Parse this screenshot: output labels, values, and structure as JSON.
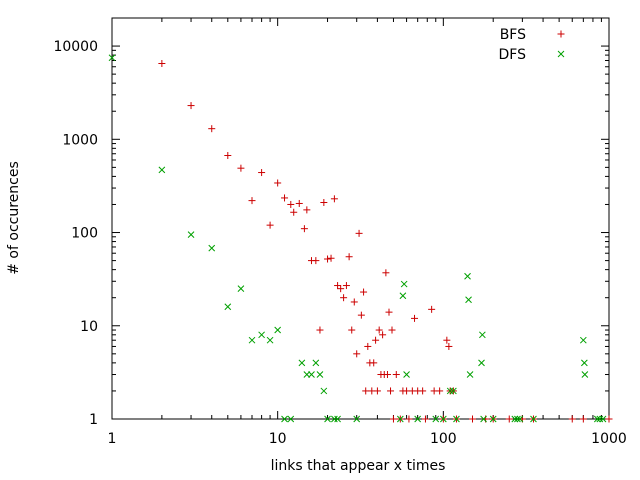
{
  "chart_data": {
    "type": "scatter",
    "title": "",
    "xlabel": "links that appear x times",
    "ylabel": "# of occurences",
    "xscale": "log",
    "yscale": "log",
    "xlim": [
      1,
      1000
    ],
    "ylim": [
      1,
      20000
    ],
    "xticks": [
      {
        "value": 1,
        "label": "1"
      },
      {
        "value": 10,
        "label": "10"
      },
      {
        "value": 100,
        "label": "100"
      },
      {
        "value": 1000,
        "label": "1000"
      }
    ],
    "yticks": [
      {
        "value": 1,
        "label": "1"
      },
      {
        "value": 10,
        "label": "10"
      },
      {
        "value": 100,
        "label": "100"
      },
      {
        "value": 1000,
        "label": "1000"
      },
      {
        "value": 10000,
        "label": "10000"
      }
    ],
    "grid": false,
    "legend_position": "top-right",
    "series": [
      {
        "name": "BFS",
        "marker": "plus",
        "color": "#cc0000",
        "points": [
          [
            2,
            6500
          ],
          [
            3,
            2300
          ],
          [
            4,
            1300
          ],
          [
            5,
            670
          ],
          [
            6,
            490
          ],
          [
            7,
            220
          ],
          [
            8,
            440
          ],
          [
            9,
            120
          ],
          [
            10,
            340
          ],
          [
            11,
            235
          ],
          [
            12,
            200
          ],
          [
            12.5,
            165
          ],
          [
            13.5,
            205
          ],
          [
            14.5,
            110
          ],
          [
            15,
            175
          ],
          [
            16,
            50
          ],
          [
            17,
            50
          ],
          [
            19,
            210
          ],
          [
            20,
            52
          ],
          [
            21,
            53
          ],
          [
            22,
            230
          ],
          [
            23,
            27
          ],
          [
            24,
            25
          ],
          [
            25,
            20
          ],
          [
            26,
            27
          ],
          [
            27,
            55
          ],
          [
            18,
            9
          ],
          [
            28,
            9
          ],
          [
            29,
            18
          ],
          [
            30,
            5
          ],
          [
            31,
            98
          ],
          [
            32,
            13
          ],
          [
            33,
            23
          ],
          [
            34,
            2
          ],
          [
            35,
            6
          ],
          [
            36,
            4
          ],
          [
            37,
            2
          ],
          [
            38,
            4
          ],
          [
            39,
            7
          ],
          [
            40,
            2
          ],
          [
            41,
            9
          ],
          [
            42,
            3
          ],
          [
            43,
            8
          ],
          [
            44,
            3
          ],
          [
            45,
            37
          ],
          [
            46,
            3
          ],
          [
            47,
            14
          ],
          [
            48,
            2
          ],
          [
            49,
            9
          ],
          [
            50,
            1
          ],
          [
            52,
            3
          ],
          [
            55,
            1
          ],
          [
            57,
            2
          ],
          [
            60,
            2
          ],
          [
            62,
            1
          ],
          [
            65,
            2
          ],
          [
            67,
            12
          ],
          [
            70,
            2
          ],
          [
            75,
            2
          ],
          [
            78,
            1
          ],
          [
            85,
            15
          ],
          [
            88,
            2
          ],
          [
            95,
            2
          ],
          [
            100,
            1
          ],
          [
            105,
            7
          ],
          [
            108,
            6
          ],
          [
            110,
            2
          ],
          [
            115,
            2
          ],
          [
            120,
            1
          ],
          [
            150,
            1
          ],
          [
            180,
            1
          ],
          [
            200,
            1
          ],
          [
            250,
            1
          ],
          [
            300,
            1
          ],
          [
            350,
            1
          ],
          [
            600,
            1
          ],
          [
            700,
            1
          ],
          [
            1000,
            1
          ]
        ]
      },
      {
        "name": "DFS",
        "marker": "x",
        "color": "#00a000",
        "points": [
          [
            1,
            7500
          ],
          [
            2,
            470
          ],
          [
            3,
            95
          ],
          [
            4,
            68
          ],
          [
            5,
            16
          ],
          [
            6,
            25
          ],
          [
            7,
            7
          ],
          [
            8,
            8
          ],
          [
            9,
            7
          ],
          [
            10,
            9
          ],
          [
            11,
            1
          ],
          [
            12,
            1
          ],
          [
            14,
            4
          ],
          [
            15,
            3
          ],
          [
            16,
            3
          ],
          [
            17,
            4
          ],
          [
            18,
            3
          ],
          [
            19,
            2
          ],
          [
            20,
            1
          ],
          [
            22,
            1
          ],
          [
            23,
            1
          ],
          [
            30,
            1
          ],
          [
            55,
            1
          ],
          [
            57,
            21
          ],
          [
            58,
            28
          ],
          [
            60,
            3
          ],
          [
            70,
            1
          ],
          [
            90,
            1
          ],
          [
            100,
            1
          ],
          [
            110,
            2
          ],
          [
            115,
            2
          ],
          [
            120,
            1
          ],
          [
            140,
            34
          ],
          [
            142,
            19
          ],
          [
            145,
            3
          ],
          [
            170,
            4
          ],
          [
            172,
            8
          ],
          [
            175,
            1
          ],
          [
            200,
            1
          ],
          [
            270,
            1
          ],
          [
            280,
            1
          ],
          [
            290,
            1
          ],
          [
            350,
            1
          ],
          [
            700,
            7
          ],
          [
            710,
            4
          ],
          [
            715,
            3
          ],
          [
            850,
            1
          ],
          [
            880,
            1
          ],
          [
            920,
            1
          ]
        ]
      }
    ]
  }
}
